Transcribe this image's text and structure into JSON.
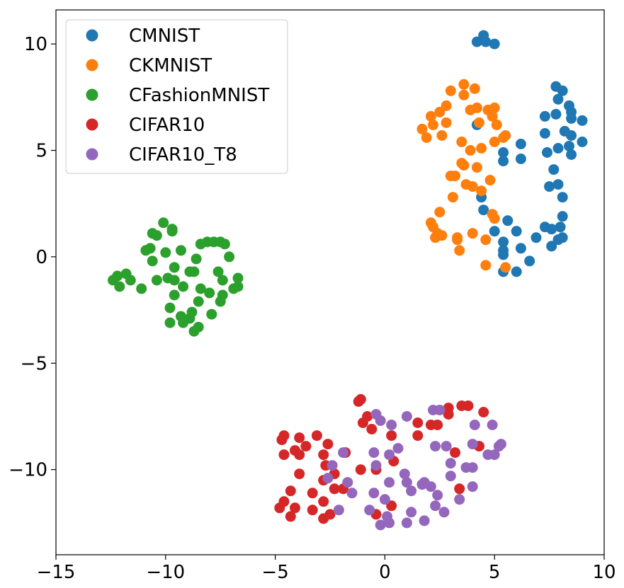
{
  "chart_data": {
    "type": "scatter",
    "title": "",
    "xlabel": "",
    "ylabel": "",
    "xlim": [
      -15,
      10
    ],
    "ylim": [
      -14,
      11.6
    ],
    "xticks": [
      -15,
      -10,
      -5,
      0,
      5,
      10
    ],
    "yticks": [
      -10,
      -5,
      0,
      5,
      10
    ],
    "xtick_labels": [
      "−15",
      "−10",
      "−5",
      "0",
      "5",
      "10"
    ],
    "ytick_labels": [
      "−10",
      "−5",
      "0",
      "5",
      "10"
    ],
    "grid": false,
    "legend_position": "top-left",
    "series": [
      {
        "name": "CMNIST",
        "color": "#1f77b4",
        "points": [
          [
            4.5,
            10.4
          ],
          [
            4.2,
            10.1
          ],
          [
            4.6,
            10.1
          ],
          [
            5.0,
            10.0
          ],
          [
            7.8,
            8.0
          ],
          [
            8.1,
            7.8
          ],
          [
            7.9,
            7.4
          ],
          [
            8.4,
            7.1
          ],
          [
            8.5,
            6.8
          ],
          [
            7.3,
            6.6
          ],
          [
            7.8,
            6.7
          ],
          [
            8.5,
            6.5
          ],
          [
            9.0,
            6.4
          ],
          [
            4.2,
            6.2
          ],
          [
            8.2,
            5.9
          ],
          [
            7.3,
            5.8
          ],
          [
            8.5,
            5.7
          ],
          [
            6.2,
            5.3
          ],
          [
            9.0,
            5.4
          ],
          [
            7.9,
            5.1
          ],
          [
            8.4,
            5.2
          ],
          [
            7.4,
            4.9
          ],
          [
            5.4,
            4.9
          ],
          [
            8.5,
            4.8
          ],
          [
            6.2,
            4.6
          ],
          [
            5.4,
            4.5
          ],
          [
            7.7,
            4.1
          ],
          [
            7.9,
            3.4
          ],
          [
            7.5,
            3.3
          ],
          [
            8.1,
            2.8
          ],
          [
            4.4,
            2.8
          ],
          [
            4.5,
            2.2
          ],
          [
            8.1,
            1.9
          ],
          [
            5.6,
            1.7
          ],
          [
            7.3,
            1.4
          ],
          [
            7.6,
            1.3
          ],
          [
            8.0,
            1.4
          ],
          [
            5.0,
            1.2
          ],
          [
            6.0,
            1.2
          ],
          [
            6.9,
            0.9
          ],
          [
            8.1,
            0.9
          ],
          [
            7.9,
            0.8
          ],
          [
            5.4,
            0.7
          ],
          [
            6.2,
            0.4
          ],
          [
            5.4,
            0.3
          ],
          [
            5.4,
            0.1
          ],
          [
            6.6,
            -0.2
          ],
          [
            5.4,
            -0.7
          ],
          [
            6.0,
            -0.7
          ],
          [
            7.6,
            0.5
          ]
        ]
      },
      {
        "name": "CKMNIST",
        "color": "#ff7f0e",
        "points": [
          [
            3.6,
            8.1
          ],
          [
            3.0,
            7.8
          ],
          [
            4.1,
            7.9
          ],
          [
            3.6,
            7.6
          ],
          [
            4.2,
            7.0
          ],
          [
            5.0,
            7.0
          ],
          [
            2.8,
            7.1
          ],
          [
            3.9,
            6.9
          ],
          [
            4.7,
            6.9
          ],
          [
            2.5,
            6.8
          ],
          [
            2.1,
            6.6
          ],
          [
            4.9,
            6.6
          ],
          [
            2.8,
            6.3
          ],
          [
            2.2,
            6.2
          ],
          [
            4.3,
            6.3
          ],
          [
            5.1,
            6.2
          ],
          [
            1.7,
            6.0
          ],
          [
            5.5,
            5.7
          ],
          [
            2.6,
            5.7
          ],
          [
            1.9,
            5.6
          ],
          [
            5.4,
            5.6
          ],
          [
            3.5,
            5.4
          ],
          [
            5.0,
            5.4
          ],
          [
            4.4,
            5.1
          ],
          [
            3.9,
            5.0
          ],
          [
            3.5,
            4.4
          ],
          [
            3.6,
            4.3
          ],
          [
            4.2,
            4.2
          ],
          [
            3.0,
            3.8
          ],
          [
            3.2,
            3.8
          ],
          [
            3.7,
            3.4
          ],
          [
            4.0,
            3.3
          ],
          [
            4.8,
            3.6
          ],
          [
            4.4,
            3.1
          ],
          [
            3.1,
            2.8
          ],
          [
            2.5,
            2.1
          ],
          [
            4.9,
            2.0
          ],
          [
            5.0,
            1.8
          ],
          [
            2.1,
            1.6
          ],
          [
            2.2,
            1.4
          ],
          [
            4.0,
            1.1
          ],
          [
            2.4,
            1.1
          ],
          [
            2.6,
            1.0
          ],
          [
            2.3,
            0.9
          ],
          [
            3.3,
            0.9
          ],
          [
            3.3,
            0.8
          ],
          [
            4.6,
            0.8
          ],
          [
            3.4,
            0.3
          ],
          [
            4.6,
            -0.4
          ],
          [
            5.5,
            -0.5
          ]
        ]
      },
      {
        "name": "CFashionMNIST",
        "color": "#2ca02c",
        "points": [
          [
            -10.1,
            1.6
          ],
          [
            -9.7,
            1.3
          ],
          [
            -10.6,
            1.1
          ],
          [
            -10.4,
            1.0
          ],
          [
            -9.7,
            1.2
          ],
          [
            -7.8,
            0.7
          ],
          [
            -7.5,
            0.7
          ],
          [
            -8.4,
            0.6
          ],
          [
            -8.1,
            0.7
          ],
          [
            -7.3,
            0.6
          ],
          [
            -10.9,
            0.3
          ],
          [
            -10.7,
            0.4
          ],
          [
            -10.0,
            0.2
          ],
          [
            -9.3,
            0.3
          ],
          [
            -7.1,
            0.0
          ],
          [
            -8.6,
            -0.1
          ],
          [
            -10.6,
            -0.2
          ],
          [
            -9.6,
            -0.5
          ],
          [
            -8.9,
            -0.7
          ],
          [
            -8.7,
            -0.7
          ],
          [
            -7.6,
            -0.7
          ],
          [
            -11.8,
            -0.8
          ],
          [
            -12.2,
            -0.9
          ],
          [
            -6.7,
            -1.0
          ],
          [
            -12.4,
            -1.1
          ],
          [
            -11.6,
            -1.1
          ],
          [
            -10.4,
            -1.1
          ],
          [
            -9.9,
            -1.0
          ],
          [
            -9.6,
            -1.1
          ],
          [
            -7.4,
            -1.1
          ],
          [
            -12.1,
            -1.4
          ],
          [
            -11.1,
            -1.5
          ],
          [
            -9.2,
            -1.4
          ],
          [
            -8.4,
            -1.5
          ],
          [
            -6.9,
            -1.5
          ],
          [
            -6.7,
            -1.4
          ],
          [
            -9.6,
            -1.8
          ],
          [
            -7.4,
            -1.8
          ],
          [
            -8.0,
            -1.7
          ],
          [
            -8.5,
            -2.1
          ],
          [
            -7.5,
            -2.1
          ],
          [
            -9.8,
            -2.4
          ],
          [
            -8.8,
            -2.6
          ],
          [
            -7.9,
            -2.7
          ],
          [
            -9.3,
            -2.8
          ],
          [
            -8.9,
            -2.9
          ],
          [
            -9.8,
            -3.1
          ],
          [
            -9.2,
            -3.1
          ],
          [
            -8.5,
            -3.3
          ],
          [
            -8.7,
            -3.5
          ]
        ]
      },
      {
        "name": "CIFAR10",
        "color": "#d62728",
        "points": [
          [
            -1.1,
            -6.7
          ],
          [
            -1.2,
            -6.8
          ],
          [
            3.5,
            -7.0
          ],
          [
            3.8,
            -7.0
          ],
          [
            2.9,
            -7.1
          ],
          [
            4.5,
            -7.3
          ],
          [
            -0.8,
            -7.5
          ],
          [
            2.9,
            -7.4
          ],
          [
            -1.0,
            -7.8
          ],
          [
            1.5,
            -7.8
          ],
          [
            2.4,
            -7.9
          ],
          [
            -0.6,
            -8.1
          ],
          [
            2.1,
            -7.9
          ],
          [
            1.5,
            -8.4
          ],
          [
            0.3,
            -8.4
          ],
          [
            -4.6,
            -8.4
          ],
          [
            -4.7,
            -8.6
          ],
          [
            -3.9,
            -8.5
          ],
          [
            -3.1,
            -8.4
          ],
          [
            -3.6,
            -8.9
          ],
          [
            -2.6,
            -8.8
          ],
          [
            -4.1,
            -9.1
          ],
          [
            -1.8,
            -9.2
          ],
          [
            -3.9,
            -9.3
          ],
          [
            -4.6,
            -9.3
          ],
          [
            -2.8,
            -9.3
          ],
          [
            3.2,
            -9.2
          ],
          [
            4.3,
            -8.9
          ],
          [
            0.4,
            -9.6
          ],
          [
            -2.7,
            -9.8
          ],
          [
            -1.1,
            -10.0
          ],
          [
            -2.3,
            -10.2
          ],
          [
            -3.9,
            -10.2
          ],
          [
            -1.9,
            -10.9
          ],
          [
            -2.3,
            -10.9
          ],
          [
            -2.8,
            -10.5
          ],
          [
            -3.3,
            -11.1
          ],
          [
            -4.3,
            -11.0
          ],
          [
            -0.4,
            -10.0
          ],
          [
            -4.8,
            -11.8
          ],
          [
            -4.6,
            -11.5
          ],
          [
            -4.1,
            -11.8
          ],
          [
            -2.8,
            -11.5
          ],
          [
            -3.3,
            -11.9
          ],
          [
            -2.5,
            -12.1
          ],
          [
            -2.8,
            -12.3
          ],
          [
            -4.3,
            -12.2
          ],
          [
            0.3,
            -11.7
          ],
          [
            -0.4,
            -12.1
          ],
          [
            3.4,
            -10.9
          ]
        ]
      },
      {
        "name": "CIFAR10_T8",
        "color": "#9467bd",
        "points": [
          [
            2.2,
            -7.2
          ],
          [
            2.5,
            -7.2
          ],
          [
            -0.4,
            -7.4
          ],
          [
            1.0,
            -7.5
          ],
          [
            -0.2,
            -7.7
          ],
          [
            0.3,
            -7.9
          ],
          [
            4.1,
            -7.9
          ],
          [
            4.9,
            -7.9
          ],
          [
            5.3,
            -8.8
          ],
          [
            4.0,
            -8.8
          ],
          [
            2.3,
            -8.9
          ],
          [
            2.8,
            -8.9
          ],
          [
            0.6,
            -9.0
          ],
          [
            5.2,
            -8.9
          ],
          [
            -1.9,
            -9.2
          ],
          [
            -0.5,
            -9.2
          ],
          [
            0.2,
            -9.3
          ],
          [
            4.7,
            -9.3
          ],
          [
            5.0,
            -9.3
          ],
          [
            3.0,
            -9.7
          ],
          [
            -2.4,
            -9.8
          ],
          [
            -0.4,
            -9.8
          ],
          [
            4.0,
            -9.9
          ],
          [
            3.7,
            -9.9
          ],
          [
            0.9,
            -10.2
          ],
          [
            3.0,
            -10.3
          ],
          [
            -2.6,
            -10.4
          ],
          [
            1.0,
            -10.6
          ],
          [
            1.8,
            -10.6
          ],
          [
            -1.7,
            -10.6
          ],
          [
            0.2,
            -10.6
          ],
          [
            2.1,
            -10.8
          ],
          [
            4.0,
            -10.8
          ],
          [
            1.2,
            -11.0
          ],
          [
            -1.5,
            -11.1
          ],
          [
            -0.5,
            -11.1
          ],
          [
            2.4,
            -11.2
          ],
          [
            0.0,
            -11.4
          ],
          [
            2.3,
            -11.7
          ],
          [
            -0.7,
            -11.9
          ],
          [
            1.2,
            -12.0
          ],
          [
            0.1,
            -12.2
          ],
          [
            2.7,
            -12.0
          ],
          [
            3.4,
            -11.4
          ],
          [
            -0.2,
            -12.6
          ],
          [
            0.2,
            -12.5
          ],
          [
            1.0,
            -12.5
          ],
          [
            1.8,
            -12.4
          ],
          [
            -2.1,
            -11.9
          ],
          [
            1.7,
            -10.7
          ]
        ]
      }
    ]
  }
}
